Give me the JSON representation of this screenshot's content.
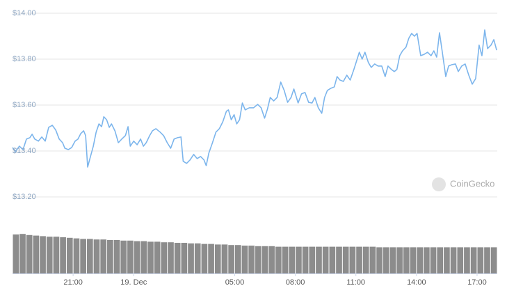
{
  "chart_data": {
    "type": "line",
    "color": "#7cb5ec",
    "grid": true,
    "xlim": [
      0,
      24
    ],
    "xticks": [
      {
        "value": 3,
        "label": "21:00"
      },
      {
        "value": 6,
        "label": "19. Dec"
      },
      {
        "value": 11,
        "label": "05:00"
      },
      {
        "value": 14,
        "label": "08:00"
      },
      {
        "value": 17,
        "label": "11:00"
      },
      {
        "value": 20,
        "label": "14:00"
      },
      {
        "value": 23,
        "label": "17:00"
      }
    ],
    "ylim": [
      13.2,
      14.0
    ],
    "yticks": [
      {
        "value": 14.0,
        "label": "$14.00"
      },
      {
        "value": 13.8,
        "label": "$13.80"
      },
      {
        "value": 13.6,
        "label": "$13.60"
      },
      {
        "value": 13.4,
        "label": "$13.40"
      },
      {
        "value": 13.2,
        "label": "$13.20"
      }
    ],
    "watermark": "CoinGecko",
    "x": [
      0.0,
      0.14,
      0.34,
      0.52,
      0.69,
      0.86,
      0.97,
      1.1,
      1.28,
      1.45,
      1.62,
      1.79,
      1.97,
      2.14,
      2.31,
      2.48,
      2.59,
      2.76,
      2.93,
      3.1,
      3.24,
      3.38,
      3.52,
      3.62,
      3.72,
      3.86,
      4.0,
      4.14,
      4.28,
      4.41,
      4.52,
      4.66,
      4.79,
      4.9,
      5.07,
      5.24,
      5.41,
      5.59,
      5.72,
      5.83,
      6.0,
      6.17,
      6.34,
      6.48,
      6.62,
      6.79,
      6.93,
      7.1,
      7.31,
      7.48,
      7.66,
      7.83,
      8.0,
      8.17,
      8.34,
      8.45,
      8.62,
      8.79,
      8.97,
      9.14,
      9.31,
      9.48,
      9.59,
      9.72,
      9.9,
      10.07,
      10.24,
      10.41,
      10.59,
      10.69,
      10.83,
      10.97,
      11.1,
      11.24,
      11.38,
      11.52,
      11.72,
      11.93,
      12.14,
      12.31,
      12.48,
      12.62,
      12.76,
      12.93,
      13.1,
      13.28,
      13.45,
      13.62,
      13.79,
      13.93,
      14.14,
      14.31,
      14.48,
      14.66,
      14.83,
      14.97,
      15.14,
      15.31,
      15.45,
      15.59,
      15.76,
      15.93,
      16.07,
      16.21,
      16.38,
      16.55,
      16.72,
      16.9,
      17.03,
      17.17,
      17.31,
      17.45,
      17.62,
      17.76,
      17.93,
      18.1,
      18.28,
      18.45,
      18.59,
      18.76,
      18.9,
      19.03,
      19.17,
      19.31,
      19.48,
      19.62,
      19.76,
      19.9,
      20.03,
      20.21,
      20.38,
      20.55,
      20.72,
      20.86,
      21.0,
      21.14,
      21.28,
      21.45,
      21.59,
      21.76,
      21.93,
      22.07,
      22.24,
      22.41,
      22.59,
      22.76,
      22.93,
      23.1,
      23.24,
      23.38,
      23.52,
      23.69,
      23.83,
      23.97
    ],
    "values": [
      13.415,
      13.397,
      13.421,
      13.406,
      13.452,
      13.458,
      13.473,
      13.452,
      13.443,
      13.461,
      13.443,
      13.503,
      13.512,
      13.491,
      13.452,
      13.436,
      13.412,
      13.406,
      13.415,
      13.443,
      13.452,
      13.476,
      13.488,
      13.467,
      13.33,
      13.376,
      13.421,
      13.482,
      13.518,
      13.506,
      13.549,
      13.536,
      13.503,
      13.518,
      13.488,
      13.436,
      13.452,
      13.467,
      13.506,
      13.421,
      13.443,
      13.427,
      13.452,
      13.421,
      13.436,
      13.467,
      13.488,
      13.497,
      13.482,
      13.467,
      13.436,
      13.412,
      13.452,
      13.458,
      13.461,
      13.355,
      13.346,
      13.361,
      13.385,
      13.367,
      13.376,
      13.361,
      13.336,
      13.391,
      13.436,
      13.482,
      13.497,
      13.527,
      13.573,
      13.579,
      13.536,
      13.558,
      13.518,
      13.536,
      13.609,
      13.579,
      13.588,
      13.588,
      13.603,
      13.588,
      13.543,
      13.582,
      13.633,
      13.618,
      13.633,
      13.7,
      13.664,
      13.612,
      13.633,
      13.67,
      13.609,
      13.649,
      13.655,
      13.612,
      13.609,
      13.633,
      13.588,
      13.564,
      13.633,
      13.664,
      13.673,
      13.679,
      13.724,
      13.709,
      13.703,
      13.73,
      13.709,
      13.755,
      13.791,
      13.83,
      13.8,
      13.83,
      13.785,
      13.764,
      13.779,
      13.77,
      13.77,
      13.724,
      13.77,
      13.755,
      13.746,
      13.755,
      13.815,
      13.836,
      13.852,
      13.891,
      13.912,
      13.9,
      13.912,
      13.815,
      13.821,
      13.83,
      13.815,
      13.836,
      13.809,
      13.915,
      13.83,
      13.724,
      13.77,
      13.776,
      13.779,
      13.746,
      13.77,
      13.779,
      13.73,
      13.691,
      13.715,
      13.861,
      13.815,
      13.927,
      13.846,
      13.861,
      13.885,
      13.839
    ],
    "volume": {
      "color": "#8c8c8c",
      "ylim": [
        0,
        100
      ],
      "values": [
        70,
        71,
        69,
        68,
        67,
        66,
        66,
        65,
        64,
        63,
        62,
        62,
        61,
        61,
        60,
        60,
        59,
        59,
        58,
        58,
        57,
        57,
        56,
        56,
        55,
        55,
        54,
        54,
        53,
        53,
        52,
        52,
        51,
        51,
        50,
        50,
        49,
        49,
        49,
        48,
        48,
        48,
        48,
        48,
        48,
        48,
        48,
        48,
        48,
        48,
        48,
        48,
        48,
        48,
        47,
        47,
        47,
        47,
        47,
        47,
        47,
        47,
        47,
        47,
        47,
        47,
        47,
        47,
        47,
        47,
        47,
        47
      ]
    }
  }
}
